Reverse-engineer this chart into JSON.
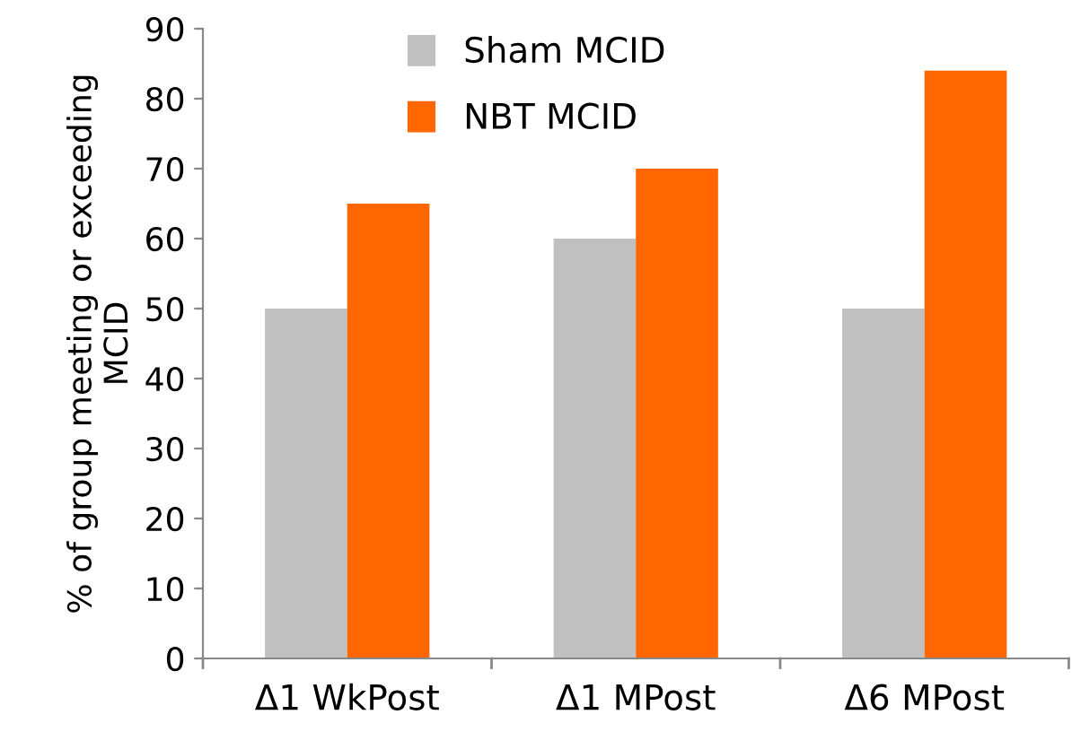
{
  "chart_data": {
    "type": "bar",
    "ylabel": "% of group meeting or exceeding\nMCID",
    "categories": [
      "Δ1 WkPost",
      "Δ1 MPost",
      "Δ6 MPost"
    ],
    "series": [
      {
        "name": "Sham MCID",
        "color": "#c0c0c0",
        "values": [
          50,
          60,
          50
        ]
      },
      {
        "name": "NBT MCID",
        "color": "#ff6600",
        "values": [
          65,
          70,
          84
        ]
      }
    ],
    "ylim": [
      0,
      90
    ],
    "yticks": [
      0,
      10,
      20,
      30,
      40,
      50,
      60,
      70,
      80,
      90
    ],
    "grid": false,
    "legend": "top left"
  }
}
